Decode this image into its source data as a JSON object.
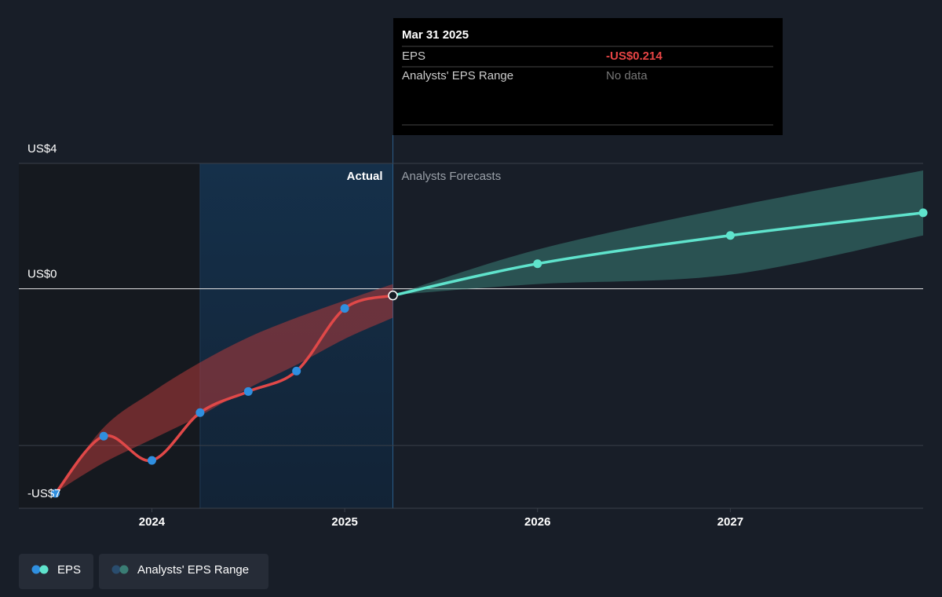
{
  "chart_data": {
    "type": "line",
    "ylim": [
      -7,
      4
    ],
    "yticks": [
      {
        "value": 4,
        "label": "US$4"
      },
      {
        "value": 0,
        "label": "US$0"
      },
      {
        "value": -5,
        "label": null
      },
      {
        "value": -7,
        "label": "-US$7"
      }
    ],
    "xlim": [
      2023.31,
      2028
    ],
    "xticks": [
      2024,
      2025,
      2026,
      2027
    ],
    "highlight": [
      2024.25,
      2025.25
    ],
    "period_labels": {
      "actual": "Actual",
      "forecast": "Analysts Forecasts"
    },
    "series": [
      {
        "name": "EPS",
        "color": "#e04848",
        "marker_color": "#2f8fe0",
        "x": [
          2023.5,
          2023.75,
          2024,
          2024.25,
          2024.5,
          2024.75,
          2025,
          2025.25
        ],
        "values": [
          -6.525,
          -4.7,
          -5.475,
          -3.95,
          -3.275,
          -2.625,
          -0.625,
          -0.214
        ],
        "forecast": {
          "color": "#5fe3cc",
          "x": [
            2026,
            2027,
            2028
          ],
          "values": [
            0.8,
            1.7,
            2.425
          ]
        }
      },
      {
        "name": "Analysts' EPS Range",
        "marker_color": "#2a4d6e",
        "actual": {
          "color": "#b23a3a",
          "x": [
            2023.5,
            2023.75,
            2024,
            2024.25,
            2024.5,
            2024.75,
            2025,
            2025.25
          ],
          "high": [
            -6.5,
            -4.425,
            -3.3,
            -2.35,
            -1.55,
            -0.925,
            -0.375,
            0.15
          ],
          "low": [
            -6.5,
            -5.55,
            -4.8,
            -4.05,
            -3.175,
            -2.425,
            -1.6,
            -0.925
          ]
        },
        "forecast": {
          "color": "#3a7d74",
          "x": [
            2025.25,
            2026,
            2027,
            2028
          ],
          "high": [
            -0.2,
            1.25,
            2.6,
            3.775
          ],
          "low": [
            -0.2,
            0.15,
            0.45,
            1.7
          ]
        }
      }
    ],
    "tooltip": {
      "title": "Mar 31 2025",
      "rows": [
        {
          "label": "EPS",
          "value": "-US$0.214"
        },
        {
          "label": "Analysts' EPS Range",
          "value": "No data"
        }
      ]
    }
  }
}
